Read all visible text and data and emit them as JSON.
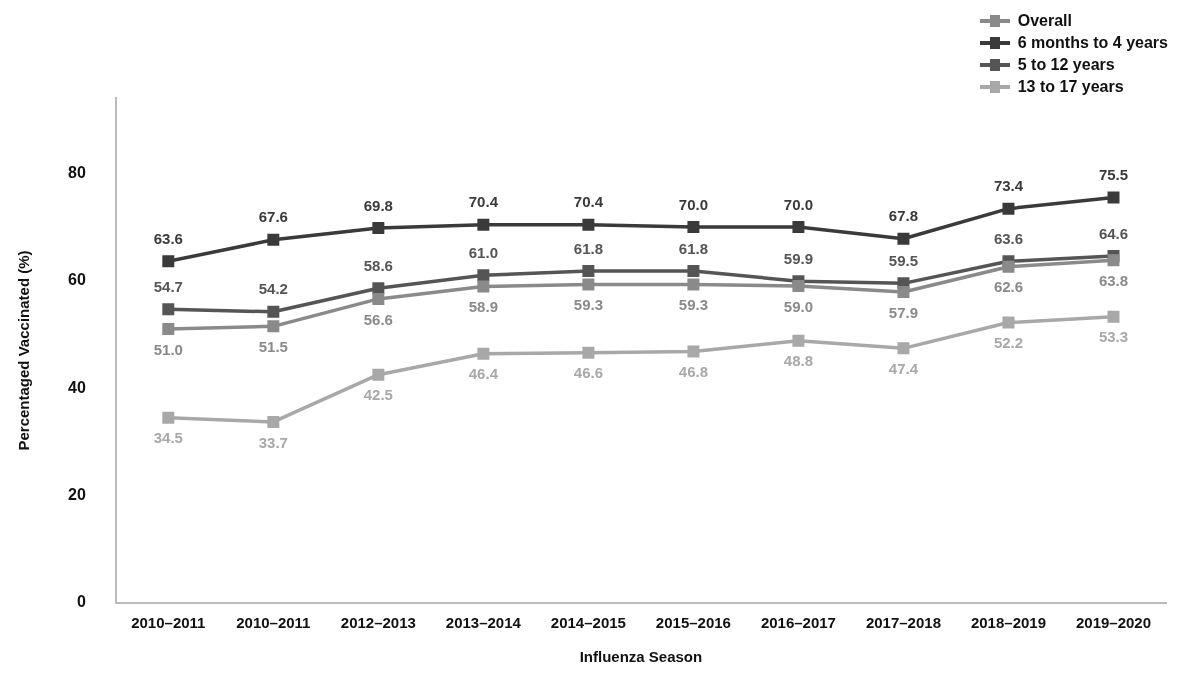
{
  "chart_data": {
    "type": "line",
    "xlabel": "Influenza Season",
    "ylabel": "Percentaged Vaccinated (%)",
    "categories": [
      "2010–2011",
      "2010–2011",
      "2012–2013",
      "2013–2014",
      "2014–2015",
      "2015–2016",
      "2016–2017",
      "2017–2018",
      "2018–2019",
      "2019–2020"
    ],
    "series": [
      {
        "name": "Overall",
        "color": "#8a8a8a",
        "values": [
          51.0,
          51.5,
          56.6,
          58.9,
          59.3,
          59.3,
          59.0,
          57.9,
          62.6,
          63.8
        ],
        "value_labels": [
          "51.0",
          "51.5",
          "56.6",
          "58.9",
          "59.3",
          "59.3",
          "59.0",
          "57.9",
          "62.6",
          "63.8"
        ]
      },
      {
        "name": "6 months to 4 years",
        "color": "#3a3a3a",
        "values": [
          63.6,
          67.6,
          69.8,
          70.4,
          70.4,
          70.0,
          70.0,
          67.8,
          73.4,
          75.5
        ],
        "value_labels": [
          "63.6",
          "67.6",
          "69.8",
          "70.4",
          "70.4",
          "70.0",
          "70.0",
          "67.8",
          "73.4",
          "75.5"
        ]
      },
      {
        "name": "5 to 12 years",
        "color": "#555555",
        "values": [
          54.7,
          54.2,
          58.6,
          61.0,
          61.8,
          61.8,
          59.9,
          59.5,
          63.6,
          64.6
        ],
        "value_labels": [
          "54.7",
          "54.2",
          "58.6",
          "61.0",
          "61.8",
          "61.8",
          "59.9",
          "59.5",
          "63.6",
          "64.6"
        ]
      },
      {
        "name": "13 to 17 years",
        "color": "#a8a8a8",
        "values": [
          34.5,
          33.7,
          42.5,
          46.4,
          46.6,
          46.8,
          48.8,
          47.4,
          52.2,
          53.3
        ],
        "value_labels": [
          "34.5",
          "33.7",
          "42.5",
          "46.4",
          "46.6",
          "46.8",
          "48.8",
          "47.4",
          "52.2",
          "53.3"
        ]
      }
    ],
    "ylim": [
      0,
      94
    ],
    "yticks": [
      0,
      20,
      40,
      60,
      80
    ],
    "grid": false,
    "legend": "top right",
    "marker": "square",
    "line_style": "solid"
  }
}
